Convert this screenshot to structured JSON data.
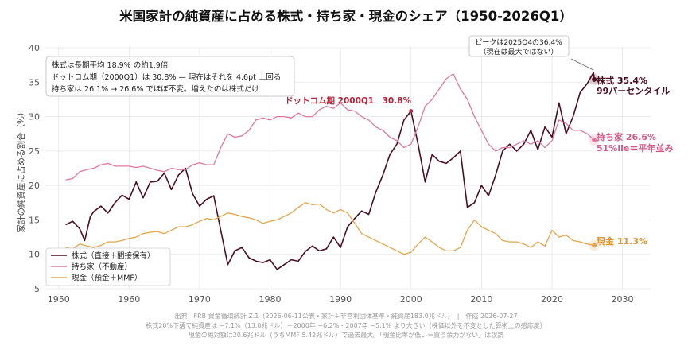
{
  "title": "米国家計の純資産に占める株式・持ち家・現金のシェア（1950-2026Q1）",
  "colors": {
    "stocks": "#4a0e1f",
    "housing": "#e0789e",
    "cash": "#e3a44a",
    "grid": "#e6e6e6",
    "peak_annot": "#b5263a"
  },
  "chart_data": {
    "type": "line",
    "ylabel": "家計の純資産に占める割合（%）",
    "xlim": [
      1948,
      2034
    ],
    "ylim": [
      5,
      40
    ],
    "xticks": [
      1950,
      1960,
      1970,
      1980,
      1990,
      2000,
      2010,
      2020,
      2030
    ],
    "yticks": [
      5,
      10,
      15,
      20,
      25,
      30,
      35,
      40
    ],
    "series": [
      {
        "name": "株式（直接＋間接保有）",
        "key": "stocks",
        "width": 1.6,
        "points": [
          [
            1951,
            14.3
          ],
          [
            1952,
            14.8
          ],
          [
            1953,
            13.7
          ],
          [
            1953.7,
            12.0
          ],
          [
            1954.5,
            15.5
          ],
          [
            1955,
            16.2
          ],
          [
            1956,
            17.0
          ],
          [
            1957,
            16.0
          ],
          [
            1958,
            17.5
          ],
          [
            1959,
            18.6
          ],
          [
            1960,
            18.0
          ],
          [
            1961,
            20.5
          ],
          [
            1962,
            18.2
          ],
          [
            1963,
            20.5
          ],
          [
            1964,
            20.6
          ],
          [
            1965,
            21.8
          ],
          [
            1966,
            19.4
          ],
          [
            1967,
            21.5
          ],
          [
            1968,
            22.5
          ],
          [
            1969,
            18.8
          ],
          [
            1970,
            17.0
          ],
          [
            1971,
            18.0
          ],
          [
            1972,
            18.5
          ],
          [
            1973,
            13.5
          ],
          [
            1974,
            8.5
          ],
          [
            1975,
            10.5
          ],
          [
            1976,
            11.0
          ],
          [
            1977,
            9.5
          ],
          [
            1978,
            9.0
          ],
          [
            1979,
            8.8
          ],
          [
            1980,
            9.2
          ],
          [
            1981,
            7.8
          ],
          [
            1982,
            8.5
          ],
          [
            1983,
            9.2
          ],
          [
            1984,
            9.0
          ],
          [
            1985,
            10.4
          ],
          [
            1986,
            11.2
          ],
          [
            1987,
            10.5
          ],
          [
            1988,
            10.8
          ],
          [
            1989,
            12.5
          ],
          [
            1990,
            11.0
          ],
          [
            1991,
            14.0
          ],
          [
            1992,
            15.2
          ],
          [
            1993,
            16.3
          ],
          [
            1994,
            15.8
          ],
          [
            1995,
            19.0
          ],
          [
            1996,
            21.5
          ],
          [
            1997,
            24.5
          ],
          [
            1998,
            26.0
          ],
          [
            1999,
            29.5
          ],
          [
            2000,
            30.8
          ],
          [
            2001,
            26.0
          ],
          [
            2002,
            20.5
          ],
          [
            2003,
            24.5
          ],
          [
            2004,
            23.5
          ],
          [
            2005,
            23.2
          ],
          [
            2006,
            24.0
          ],
          [
            2007,
            25.0
          ],
          [
            2008,
            16.8
          ],
          [
            2009,
            17.5
          ],
          [
            2010,
            20.0
          ],
          [
            2011,
            18.5
          ],
          [
            2012,
            21.5
          ],
          [
            2013,
            25.0
          ],
          [
            2014,
            26.0
          ],
          [
            2015,
            25.0
          ],
          [
            2016,
            26.0
          ],
          [
            2017,
            28.0
          ],
          [
            2018,
            25.2
          ],
          [
            2019,
            28.5
          ],
          [
            2020,
            27.0
          ],
          [
            2021,
            32.0
          ],
          [
            2022,
            27.5
          ],
          [
            2023,
            30.0
          ],
          [
            2024,
            33.5
          ],
          [
            2025,
            34.8
          ],
          [
            2025.9,
            36.4
          ],
          [
            2026,
            35.4
          ]
        ]
      },
      {
        "name": "持ち家（不動産）",
        "key": "housing",
        "width": 1.3,
        "points": [
          [
            1951,
            20.8
          ],
          [
            1952,
            21.0
          ],
          [
            1953,
            22.0
          ],
          [
            1954,
            22.3
          ],
          [
            1955,
            22.5
          ],
          [
            1956,
            23.0
          ],
          [
            1957,
            23.2
          ],
          [
            1958,
            22.8
          ],
          [
            1959,
            22.8
          ],
          [
            1960,
            22.8
          ],
          [
            1961,
            22.6
          ],
          [
            1962,
            22.8
          ],
          [
            1963,
            22.5
          ],
          [
            1964,
            22.2
          ],
          [
            1965,
            22.0
          ],
          [
            1966,
            22.5
          ],
          [
            1967,
            22.3
          ],
          [
            1968,
            22.3
          ],
          [
            1969,
            23.0
          ],
          [
            1970,
            23.3
          ],
          [
            1971,
            23.0
          ],
          [
            1972,
            23.0
          ],
          [
            1973,
            25.5
          ],
          [
            1974,
            27.5
          ],
          [
            1975,
            27.0
          ],
          [
            1976,
            27.2
          ],
          [
            1977,
            28.0
          ],
          [
            1978,
            29.5
          ],
          [
            1979,
            29.8
          ],
          [
            1980,
            29.5
          ],
          [
            1981,
            30.0
          ],
          [
            1982,
            30.0
          ],
          [
            1983,
            29.8
          ],
          [
            1984,
            30.5
          ],
          [
            1985,
            30.0
          ],
          [
            1986,
            30.0
          ],
          [
            1987,
            31.0
          ],
          [
            1988,
            31.5
          ],
          [
            1989,
            31.2
          ],
          [
            1990,
            32.0
          ],
          [
            1991,
            31.0
          ],
          [
            1992,
            30.8
          ],
          [
            1993,
            30.0
          ],
          [
            1994,
            29.5
          ],
          [
            1995,
            28.5
          ],
          [
            1996,
            28.0
          ],
          [
            1997,
            27.0
          ],
          [
            1998,
            26.5
          ],
          [
            1999,
            25.5
          ],
          [
            2000,
            26.0
          ],
          [
            2001,
            28.5
          ],
          [
            2002,
            31.5
          ],
          [
            2003,
            32.5
          ],
          [
            2004,
            34.0
          ],
          [
            2005,
            35.5
          ],
          [
            2006,
            36.2
          ],
          [
            2007,
            34.0
          ],
          [
            2008,
            32.5
          ],
          [
            2009,
            30.0
          ],
          [
            2010,
            28.0
          ],
          [
            2011,
            26.0
          ],
          [
            2012,
            25.0
          ],
          [
            2013,
            25.5
          ],
          [
            2014,
            25.5
          ],
          [
            2015,
            26.0
          ],
          [
            2016,
            26.5
          ],
          [
            2017,
            26.0
          ],
          [
            2018,
            26.5
          ],
          [
            2019,
            25.5
          ],
          [
            2020,
            26.5
          ],
          [
            2021,
            29.5
          ],
          [
            2022,
            29.0
          ],
          [
            2023,
            28.0
          ],
          [
            2024,
            28.0
          ],
          [
            2025,
            27.5
          ],
          [
            2026,
            26.6
          ]
        ]
      },
      {
        "name": "現金（預金＋MMF）",
        "key": "cash",
        "width": 1.3,
        "points": [
          [
            1951,
            11.0
          ],
          [
            1952,
            10.8
          ],
          [
            1953,
            11.5
          ],
          [
            1954,
            11.2
          ],
          [
            1955,
            11.0
          ],
          [
            1956,
            11.3
          ],
          [
            1957,
            11.8
          ],
          [
            1958,
            11.8
          ],
          [
            1959,
            12.0
          ],
          [
            1960,
            12.3
          ],
          [
            1961,
            12.5
          ],
          [
            1962,
            13.0
          ],
          [
            1963,
            13.2
          ],
          [
            1964,
            13.3
          ],
          [
            1965,
            13.0
          ],
          [
            1966,
            13.5
          ],
          [
            1967,
            14.0
          ],
          [
            1968,
            14.0
          ],
          [
            1969,
            14.3
          ],
          [
            1970,
            14.8
          ],
          [
            1971,
            15.2
          ],
          [
            1972,
            15.0
          ],
          [
            1973,
            15.5
          ],
          [
            1974,
            16.0
          ],
          [
            1975,
            15.8
          ],
          [
            1976,
            15.5
          ],
          [
            1977,
            15.3
          ],
          [
            1978,
            15.0
          ],
          [
            1979,
            14.5
          ],
          [
            1980,
            14.8
          ],
          [
            1981,
            15.0
          ],
          [
            1982,
            15.5
          ],
          [
            1983,
            16.0
          ],
          [
            1984,
            16.8
          ],
          [
            1985,
            17.5
          ],
          [
            1986,
            17.2
          ],
          [
            1987,
            17.3
          ],
          [
            1988,
            16.5
          ],
          [
            1989,
            16.0
          ],
          [
            1990,
            16.5
          ],
          [
            1991,
            16.0
          ],
          [
            1992,
            14.5
          ],
          [
            1993,
            13.0
          ],
          [
            1994,
            12.5
          ],
          [
            1995,
            12.0
          ],
          [
            1996,
            11.5
          ],
          [
            1997,
            11.0
          ],
          [
            1998,
            10.5
          ],
          [
            1999,
            10.0
          ],
          [
            2000,
            10.3
          ],
          [
            2001,
            11.5
          ],
          [
            2002,
            12.5
          ],
          [
            2003,
            11.8
          ],
          [
            2004,
            11.0
          ],
          [
            2005,
            10.5
          ],
          [
            2006,
            10.5
          ],
          [
            2007,
            11.0
          ],
          [
            2008,
            13.5
          ],
          [
            2009,
            15.0
          ],
          [
            2010,
            14.0
          ],
          [
            2011,
            13.5
          ],
          [
            2012,
            13.0
          ],
          [
            2013,
            12.0
          ],
          [
            2014,
            11.8
          ],
          [
            2015,
            11.8
          ],
          [
            2016,
            11.5
          ],
          [
            2017,
            11.0
          ],
          [
            2018,
            11.8
          ],
          [
            2019,
            11.2
          ],
          [
            2020,
            13.5
          ],
          [
            2021,
            12.5
          ],
          [
            2022,
            12.8
          ],
          [
            2023,
            12.0
          ],
          [
            2024,
            11.8
          ],
          [
            2025,
            11.5
          ],
          [
            2026,
            11.3
          ]
        ]
      }
    ],
    "end_labels": [
      {
        "key": "stocks",
        "line1": "株式 35.4%",
        "line2": "99パーセンタイル"
      },
      {
        "key": "housing",
        "line1": "持ち家 26.6%",
        "line2": "51%ile＝平年並み"
      },
      {
        "key": "cash",
        "line1": "現金 11.3%",
        "line2": ""
      }
    ],
    "annotations": {
      "dotcom": "ドットコム期 2000Q1　30.8%",
      "peak_line1": "ピークは2025Q4の36.4%",
      "peak_line2": "（現在は最大ではない）"
    },
    "notes": [
      "株式は長期平均 18.9% の約1.9倍",
      "ドットコム期（2000Q1）は 30.8% — 現在はそれを 4.6pt 上回る",
      "持ち家は 26.1% → 26.6% でほぼ不変。増えたのは株式だけ"
    ]
  },
  "footer": [
    "出典：FRB 資金循環統計 Z.1（2026-06-11公表・家計＋非営利団体基準・純資産183.0兆ドル）　|　作成 2026-07-27",
    "株式20%下落で純資産は −7.1%（13.0兆ドル）＝2000年 −6.2%・2007年 −5.1% より大きい（株価以外を不変とした算術上の感応度）",
    "現金の絶対額は20.6兆ドル（うちMMF 5.42兆ドル）で過去最大。「現金比率が低い＝買う余力がない」は誤読"
  ]
}
